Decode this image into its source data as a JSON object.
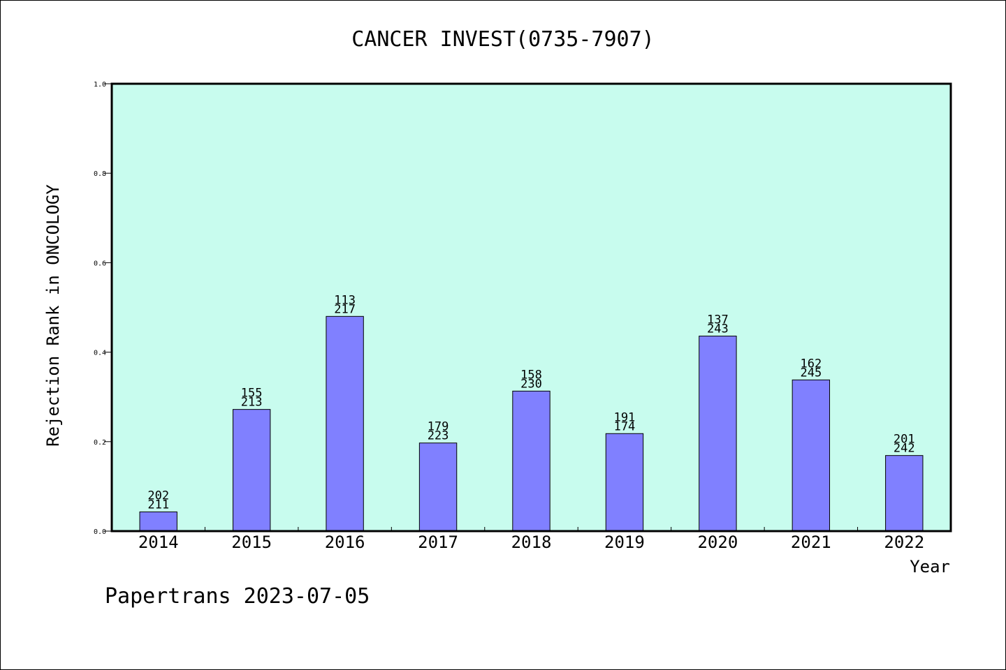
{
  "chart_data": {
    "type": "bar",
    "title": "CANCER INVEST(0735-7907)",
    "ylabel": "Rejection Rank in ONCOLOGY",
    "xlabel": "Year",
    "ylim": [
      0,
      1.0
    ],
    "yticks": [
      "0.0",
      "0.2",
      "0.4",
      "0.6",
      "0.8",
      "1.0"
    ],
    "categories": [
      "2014",
      "2015",
      "2016",
      "2017",
      "2018",
      "2019",
      "2020",
      "2021",
      "2022"
    ],
    "values": [
      0.043,
      0.272,
      0.48,
      0.197,
      0.313,
      0.218,
      0.436,
      0.338,
      0.169
    ],
    "bar_labels_top": [
      "202",
      "155",
      "113",
      "179",
      "158",
      "191",
      "137",
      "162",
      "201"
    ],
    "bar_labels_bottom": [
      "211",
      "213",
      "217",
      "223",
      "230",
      "174",
      "243",
      "245",
      "242"
    ],
    "plot_background": "#c8fcee",
    "bar_color": "#8080ff",
    "grid": false,
    "legend": "none"
  },
  "footer": "Papertrans 2023-07-05"
}
